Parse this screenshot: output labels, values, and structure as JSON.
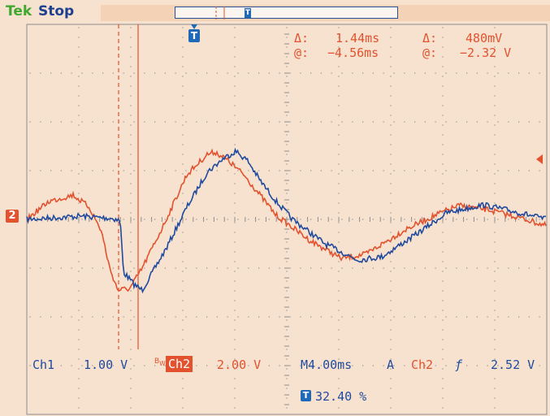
{
  "header": {
    "brand": "Tek",
    "acquisition_state": "Stop"
  },
  "cursor_readout": {
    "time_delta_symbol": "Δ:",
    "time_delta": "1.44ms",
    "time_at_symbol": "@:",
    "time_at": "−4.56ms",
    "volt_delta_symbol": "Δ:",
    "volt_delta": "480mV",
    "volt_at_symbol": "@:",
    "volt_at": "−2.32 V"
  },
  "status_bar": {
    "ch1_label": "Ch1",
    "ch1_scale": "1.00 V",
    "ch2_label": "Ch2",
    "ch2_scale": "2.00 V",
    "timebase": "M4.00ms",
    "trigger_mode": "A",
    "trigger_source": "Ch2",
    "trigger_slope_glyph": "ƒ",
    "trigger_level": "2.52 V",
    "trigger_position": "32.40 %"
  },
  "markers": {
    "ch2_marker": "2",
    "trigger_marker": "T"
  },
  "colors": {
    "ch1": "#1f4a9e",
    "ch2": "#e2522e",
    "brand": "#3fa82f",
    "background": "#f7e2cf"
  }
}
